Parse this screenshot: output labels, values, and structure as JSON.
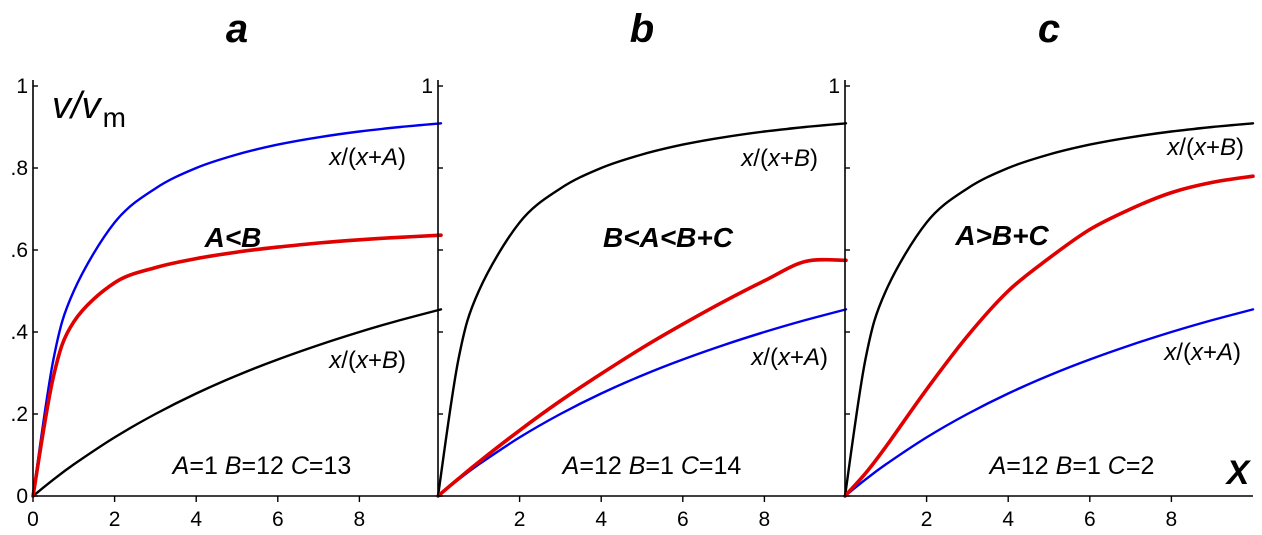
{
  "chart_data": [
    {
      "type": "line",
      "title": "a",
      "ylabel": "v/v",
      "ylabel_subscript": "m",
      "xlabel": "",
      "xlim": [
        0,
        10
      ],
      "ylim": [
        0,
        1
      ],
      "x_ticks": [
        "0",
        "2",
        "4",
        "6",
        "8"
      ],
      "y_ticks": [
        "0",
        ".2",
        ".4",
        ".6",
        ".8",
        "1"
      ],
      "inequality": "A<B",
      "params": {
        "A": "1",
        "B": "12",
        "C": "13"
      },
      "series": [
        {
          "name": "x/(x+A)",
          "color": "#0000ee",
          "x": [
            0,
            0.5,
            1,
            2,
            3,
            4,
            5,
            6,
            7,
            8,
            9,
            10
          ],
          "y": [
            0,
            0.333,
            0.5,
            0.667,
            0.75,
            0.8,
            0.833,
            0.857,
            0.875,
            0.889,
            0.9,
            0.909
          ]
        },
        {
          "name": "",
          "color": "#e00000",
          "x": [
            0,
            0.5,
            1,
            2,
            3,
            4,
            5,
            6,
            7,
            8,
            9,
            10
          ],
          "y": [
            0,
            0.291,
            0.425,
            0.52,
            0.557,
            0.579,
            0.595,
            0.607,
            0.617,
            0.625,
            0.631,
            0.636
          ]
        },
        {
          "name": "x/(x+B)",
          "color": "#000000",
          "x": [
            0,
            0.5,
            1,
            2,
            3,
            4,
            5,
            6,
            7,
            8,
            9,
            10
          ],
          "y": [
            0,
            0.04,
            0.077,
            0.143,
            0.2,
            0.25,
            0.294,
            0.333,
            0.368,
            0.4,
            0.429,
            0.455
          ]
        }
      ]
    },
    {
      "type": "line",
      "title": "b",
      "xlim": [
        0,
        10
      ],
      "ylim": [
        0,
        1
      ],
      "x_ticks": [
        "2",
        "4",
        "6",
        "8"
      ],
      "y_ticks": [
        "1"
      ],
      "inequality": "B<A<B+C",
      "params": {
        "A": "12",
        "B": "1",
        "C": "14"
      },
      "series": [
        {
          "name": "x/(x+B)",
          "color": "#000000",
          "x": [
            0,
            0.5,
            1,
            2,
            3,
            4,
            5,
            6,
            7,
            8,
            9,
            10
          ],
          "y": [
            0,
            0.333,
            0.5,
            0.667,
            0.75,
            0.8,
            0.833,
            0.857,
            0.875,
            0.889,
            0.9,
            0.909
          ]
        },
        {
          "name": "",
          "color": "#e00000",
          "x": [
            0,
            0.5,
            1,
            2,
            3,
            4,
            5,
            6,
            7,
            8,
            9,
            10
          ],
          "y": [
            0,
            0.042,
            0.083,
            0.16,
            0.232,
            0.298,
            0.361,
            0.419,
            0.474,
            0.525,
            0.572,
            0.575
          ]
        },
        {
          "name": "x/(x+A)",
          "color": "#0000ee",
          "x": [
            0,
            0.5,
            1,
            2,
            3,
            4,
            5,
            6,
            7,
            8,
            9,
            10
          ],
          "y": [
            0,
            0.04,
            0.077,
            0.143,
            0.2,
            0.25,
            0.294,
            0.333,
            0.368,
            0.4,
            0.429,
            0.455
          ]
        }
      ]
    },
    {
      "type": "line",
      "title": "c",
      "xlabel": "X",
      "xlim": [
        0,
        10
      ],
      "ylim": [
        0,
        1
      ],
      "x_ticks": [
        "2",
        "4",
        "6",
        "8"
      ],
      "y_ticks": [
        "1"
      ],
      "inequality": "A>B+C",
      "params": {
        "A": "12",
        "B": "1",
        "C": "2"
      },
      "series": [
        {
          "name": "x/(x+B)",
          "color": "#000000",
          "x": [
            0,
            0.5,
            1,
            2,
            3,
            4,
            5,
            6,
            7,
            8,
            9,
            10
          ],
          "y": [
            0,
            0.333,
            0.5,
            0.667,
            0.75,
            0.8,
            0.833,
            0.857,
            0.875,
            0.889,
            0.9,
            0.909
          ]
        },
        {
          "name": "",
          "color": "#e00000",
          "x": [
            0,
            0.5,
            1,
            2,
            3,
            4,
            5,
            6,
            7,
            8,
            9,
            10
          ],
          "y": [
            0,
            0.055,
            0.12,
            0.26,
            0.39,
            0.5,
            0.58,
            0.65,
            0.7,
            0.74,
            0.765,
            0.78
          ]
        },
        {
          "name": "x/(x+A)",
          "color": "#0000ee",
          "x": [
            0,
            0.5,
            1,
            2,
            3,
            4,
            5,
            6,
            7,
            8,
            9,
            10
          ],
          "y": [
            0,
            0.04,
            0.077,
            0.143,
            0.2,
            0.25,
            0.294,
            0.333,
            0.368,
            0.4,
            0.429,
            0.455
          ]
        }
      ]
    }
  ]
}
